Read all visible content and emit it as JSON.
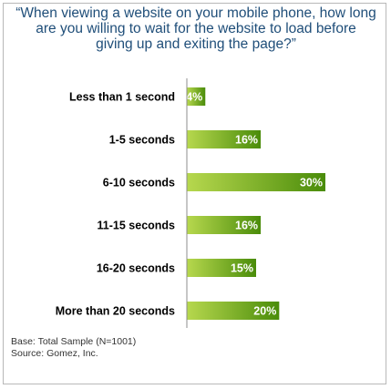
{
  "chart_data": {
    "type": "bar",
    "orientation": "horizontal",
    "title_lines": [
      "“When viewing a website on your mobile phone, how long",
      "are you willing to wait for the website to load before",
      "giving up and exiting the page?”"
    ],
    "categories": [
      "Less than 1 second",
      "1-5 seconds",
      "6-10 seconds",
      "11-15 seconds",
      "16-20 seconds",
      "More than 20 seconds"
    ],
    "values": [
      4,
      16,
      30,
      16,
      15,
      20
    ],
    "data_labels": [
      "4%",
      "16%",
      "30%",
      "16%",
      "15%",
      "20%"
    ],
    "unit": "%",
    "xlim": [
      0,
      30
    ],
    "grid": false,
    "legend": "none",
    "colors": {
      "bar_light": "#b7d84e",
      "bar_dark": "#4a8c0a",
      "axis": "#8c8c8c",
      "title": "#1f4e79"
    }
  },
  "footer": {
    "base": "Base: Total Sample (N=1001)",
    "source": "Source: Gomez, Inc."
  }
}
